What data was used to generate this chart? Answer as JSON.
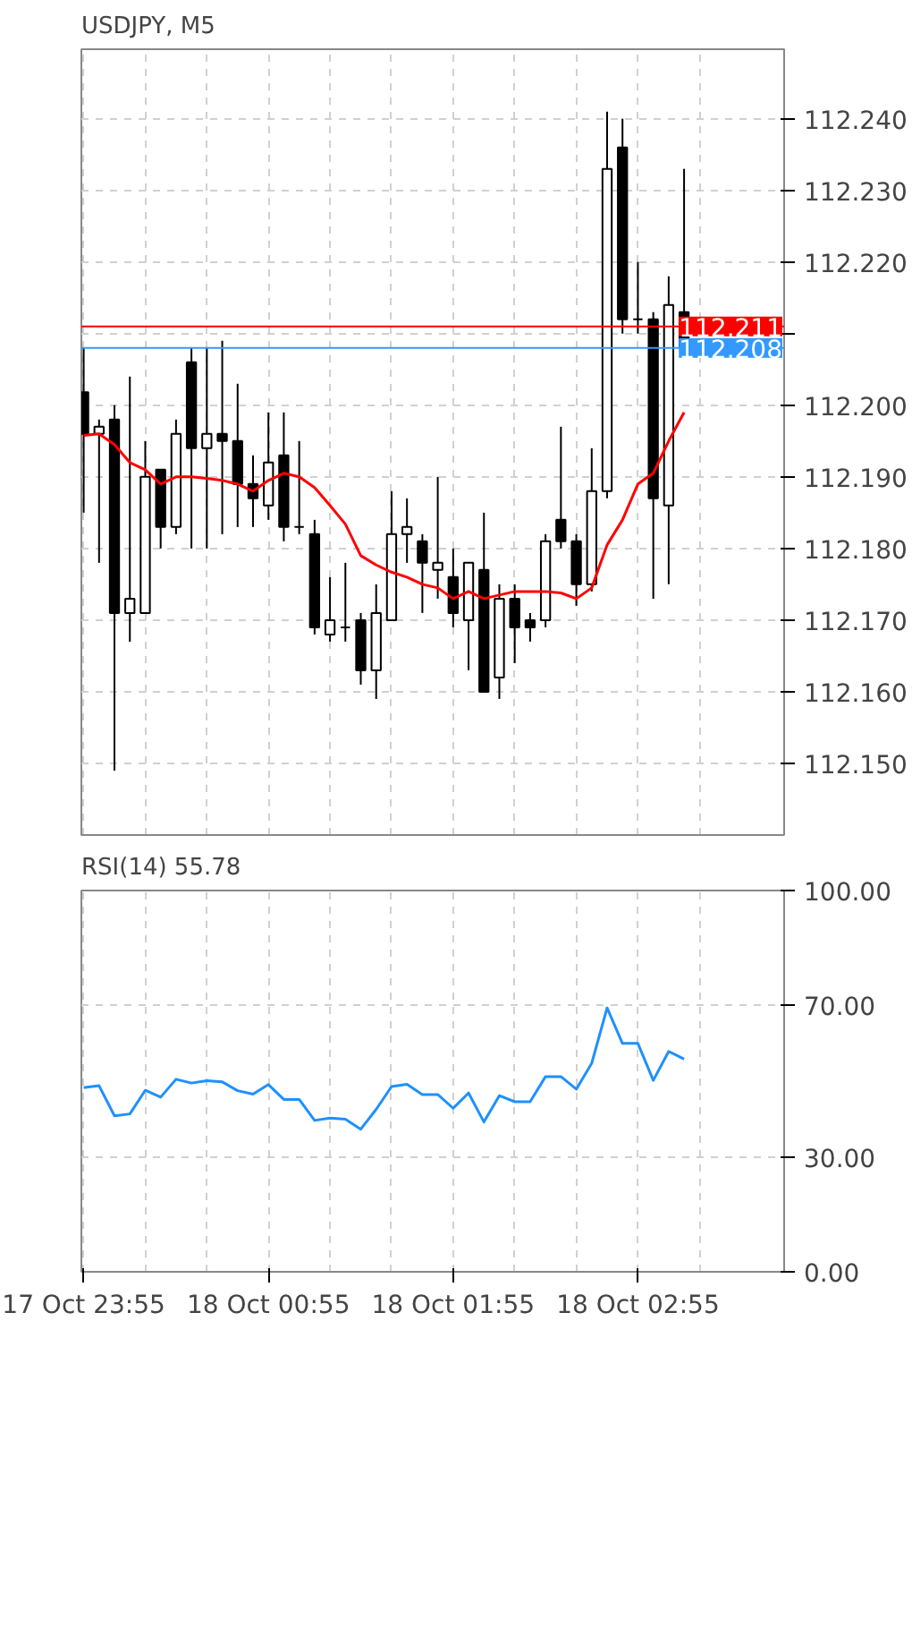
{
  "chart_data": [
    {
      "type": "candlestick",
      "title": "USDJPY, M5",
      "categories": [
        null,
        null,
        null,
        null,
        null,
        null,
        null,
        null,
        null,
        null,
        null,
        null,
        null,
        null,
        null,
        null,
        null,
        null,
        null,
        null,
        null,
        null,
        null,
        null,
        null,
        null,
        null,
        null,
        null,
        null,
        null,
        null,
        null,
        null,
        null,
        null,
        null,
        null,
        null,
        null
      ],
      "ohlc": [
        [
          112.2018,
          112.208,
          112.185,
          112.196
        ],
        [
          112.196,
          112.198,
          112.178,
          112.197
        ],
        [
          112.198,
          112.2,
          112.149,
          112.171
        ],
        [
          112.171,
          112.204,
          112.167,
          112.173
        ],
        [
          112.171,
          112.195,
          112.171,
          112.19
        ],
        [
          112.191,
          112.191,
          112.18,
          112.183
        ],
        [
          112.183,
          112.198,
          112.182,
          112.196
        ],
        [
          112.206,
          112.208,
          112.18,
          112.194
        ],
        [
          112.194,
          112.208,
          112.18,
          112.196
        ],
        [
          112.196,
          112.209,
          112.182,
          112.195
        ],
        [
          112.195,
          112.203,
          112.183,
          112.189
        ],
        [
          112.189,
          112.193,
          112.183,
          112.187
        ],
        [
          112.186,
          112.199,
          112.184,
          112.192
        ],
        [
          112.193,
          112.199,
          112.181,
          112.183
        ],
        [
          112.183,
          112.195,
          112.182,
          112.183
        ],
        [
          112.182,
          112.184,
          112.168,
          112.169
        ],
        [
          112.168,
          112.176,
          112.167,
          112.17
        ],
        [
          112.169,
          112.178,
          112.167,
          112.169
        ],
        [
          112.17,
          112.171,
          112.161,
          112.163
        ],
        [
          112.163,
          112.175,
          112.159,
          112.171
        ],
        [
          112.17,
          112.188,
          112.17,
          112.182
        ],
        [
          112.182,
          112.187,
          112.178,
          112.183
        ],
        [
          112.181,
          112.182,
          112.171,
          112.178
        ],
        [
          112.177,
          112.19,
          112.173,
          112.178
        ],
        [
          112.176,
          112.18,
          112.169,
          112.171
        ],
        [
          112.17,
          112.178,
          112.163,
          112.178
        ],
        [
          112.177,
          112.185,
          112.16,
          112.16
        ],
        [
          112.162,
          112.175,
          112.159,
          112.173
        ],
        [
          112.173,
          112.175,
          112.164,
          112.169
        ],
        [
          112.17,
          112.171,
          112.167,
          112.169
        ],
        [
          112.17,
          112.182,
          112.169,
          112.181
        ],
        [
          112.184,
          112.197,
          112.18,
          112.181
        ],
        [
          112.181,
          112.182,
          112.172,
          112.175
        ],
        [
          112.175,
          112.194,
          112.174,
          112.188
        ],
        [
          112.188,
          112.241,
          112.187,
          112.233
        ],
        [
          112.236,
          112.24,
          112.21,
          112.212
        ],
        [
          112.212,
          112.22,
          112.21,
          112.212
        ],
        [
          112.212,
          112.213,
          112.173,
          112.187
        ],
        [
          112.186,
          112.218,
          112.175,
          112.214
        ],
        [
          112.213,
          112.233,
          112.208,
          112.208
        ]
      ],
      "series": [
        {
          "type": "line",
          "color": "#ff0000",
          "values": [
            112.1958,
            112.196,
            112.1945,
            112.192,
            112.191,
            112.189,
            112.19,
            112.19,
            112.1898,
            112.1895,
            112.189,
            112.188,
            112.1895,
            112.1905,
            112.19,
            112.1885,
            112.186,
            112.1834,
            112.179,
            112.1777,
            112.1767,
            112.176,
            112.175,
            112.1745,
            112.173,
            112.174,
            112.173,
            112.1735,
            112.174,
            112.174,
            112.174,
            112.1738,
            112.173,
            112.1745,
            112.1805,
            112.184,
            112.189,
            112.1905,
            112.195,
            112.199
          ]
        }
      ],
      "ref_lines": [
        {
          "axis": "y",
          "value": 112.211,
          "label": "112.211",
          "color": "#ff0000"
        },
        {
          "axis": "y",
          "value": 112.208,
          "label": "112.208",
          "color": "#3399ff"
        }
      ],
      "ylim": [
        112.14,
        112.2497
      ],
      "yticks": [
        {
          "value": 112.15,
          "label": "112.150"
        },
        {
          "value": 112.16,
          "label": "112.160"
        },
        {
          "value": 112.17,
          "label": "112.170"
        },
        {
          "value": 112.18,
          "label": "112.180"
        },
        {
          "value": 112.19,
          "label": "112.190"
        },
        {
          "value": 112.2,
          "label": "112.200"
        },
        {
          "value": 112.21,
          "label": null
        },
        {
          "value": 112.22,
          "label": "112.220"
        },
        {
          "value": 112.23,
          "label": "112.230"
        },
        {
          "value": 112.24,
          "label": "112.240"
        }
      ],
      "grid": true,
      "tick_labels": "y"
    },
    {
      "type": "line",
      "title": "RSI(14) 55.78",
      "categories": [
        "17 Oct 23:55",
        null,
        null,
        null,
        null,
        null,
        null,
        null,
        null,
        null,
        null,
        null,
        "18 Oct 00:55",
        null,
        null,
        null,
        null,
        null,
        null,
        null,
        null,
        null,
        null,
        null,
        "18 Oct 01:55",
        null,
        null,
        null,
        null,
        null,
        null,
        null,
        null,
        null,
        null,
        null,
        "18 Oct 02:55",
        null,
        null,
        null
      ],
      "series": [
        {
          "color": "#1e90ff",
          "values": [
            48.3,
            48.8,
            40.9,
            41.4,
            47.6,
            45.8,
            50.5,
            49.5,
            50.1,
            49.8,
            47.5,
            46.6,
            49.1,
            45.2,
            45.2,
            39.7,
            40.3,
            40.0,
            37.4,
            42.6,
            48.6,
            49.2,
            46.5,
            46.5,
            42.9,
            46.9,
            39.3,
            46.2,
            44.6,
            44.6,
            51.2,
            51.2,
            47.9,
            54.7,
            69.2,
            59.9,
            59.9,
            50.2,
            57.8,
            55.8
          ]
        }
      ],
      "ylim": [
        0,
        100
      ],
      "yticks": [
        {
          "value": 0,
          "label": "0.00"
        },
        {
          "value": 30,
          "label": "30.00"
        },
        {
          "value": 70,
          "label": "70.00"
        },
        {
          "value": 100,
          "label": "100.00"
        }
      ],
      "grid": true
    }
  ]
}
